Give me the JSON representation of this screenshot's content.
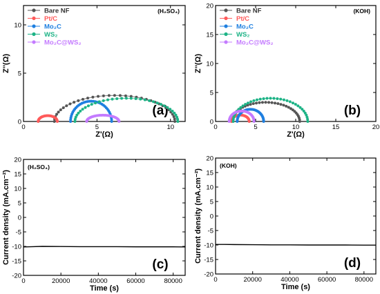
{
  "chart_data": [
    {
      "type": "scatter",
      "panel_label": "(a)",
      "electrolyte_label": "(H₂SO₄)",
      "xlabel": "Z'(Ω)",
      "ylabel": "Z''(Ω)",
      "xlim": [
        0,
        11
      ],
      "ylim": [
        0,
        12
      ],
      "xticks": [
        0,
        5,
        10
      ],
      "yticks": [
        0,
        5,
        10
      ],
      "legend_position": "top-left",
      "series": [
        {
          "name": "Bare NF",
          "color": "#555555",
          "arc": {
            "start": 2.1,
            "end": 10.3,
            "peak": 2.7
          }
        },
        {
          "name": "Pt/C",
          "color": "#ff5a5a",
          "arc": {
            "start": 1.0,
            "end": 2.3,
            "peak": 0.6
          }
        },
        {
          "name": "Mo₂C",
          "color": "#1e7fe0",
          "arc": {
            "start": 3.2,
            "end": 6.0,
            "peak": 2.1
          }
        },
        {
          "name": "WS₂",
          "color": "#1db386",
          "arc": {
            "start": 3.5,
            "end": 10.5,
            "peak": 2.4
          }
        },
        {
          "name": "Mo₂C@WS₂",
          "color": "#c47bff",
          "arc": {
            "start": 4.3,
            "end": 6.5,
            "peak": 0.65
          }
        }
      ]
    },
    {
      "type": "scatter",
      "panel_label": "(b)",
      "electrolyte_label": "(KOH)",
      "xlabel": "Z'(Ω)",
      "ylabel": "Z''(Ω)",
      "xlim": [
        0,
        20
      ],
      "ylim": [
        0,
        20
      ],
      "xticks": [
        0,
        5,
        10,
        15,
        20
      ],
      "yticks": [
        0,
        5,
        10,
        15,
        20
      ],
      "legend_position": "top-left",
      "series": [
        {
          "name": "Bare NF",
          "color": "#555555",
          "arc": {
            "start": 2.0,
            "end": 10.5,
            "peak": 3.3
          }
        },
        {
          "name": "Pt/C",
          "color": "#ff5a5a",
          "arc": {
            "start": 2.0,
            "end": 4.2,
            "peak": 1.1
          }
        },
        {
          "name": "Mo₂C",
          "color": "#1e7fe0",
          "arc": {
            "start": 2.7,
            "end": 6.0,
            "peak": 2.1
          }
        },
        {
          "name": "WS₂",
          "color": "#1db386",
          "arc": {
            "start": 2.2,
            "end": 11.5,
            "peak": 4.0
          }
        },
        {
          "name": "Mo₂C@WS₂",
          "color": "#c47bff",
          "arc": {
            "start": 1.7,
            "end": 4.8,
            "peak": 1.8
          }
        }
      ]
    },
    {
      "type": "line",
      "panel_label": "(c)",
      "electrolyte_label": "(H₂SO₄)",
      "xlabel": "Time (s)",
      "ylabel": "Current density (mA.cm⁻²)",
      "xlim": [
        0,
        86400
      ],
      "ylim": [
        -20,
        20
      ],
      "xticks": [
        0,
        20000,
        40000,
        60000,
        80000
      ],
      "yticks": [
        -20,
        -15,
        -10,
        -5,
        0,
        5,
        10,
        15,
        20
      ],
      "series": [
        {
          "name": "",
          "color": "#000000",
          "x": [
            0,
            5000,
            10000,
            20000,
            30000,
            40000,
            50000,
            60000,
            70000,
            80000,
            86400
          ],
          "y": [
            -10.2,
            -10.1,
            -10.0,
            -10.05,
            -10.1,
            -10.1,
            -10.1,
            -10.15,
            -10.15,
            -10.15,
            -10.2
          ]
        }
      ]
    },
    {
      "type": "line",
      "panel_label": "(d)",
      "electrolyte_label": "(KOH)",
      "xlabel": "Time (s)",
      "ylabel": "Current density (mA.cm⁻²)",
      "xlim": [
        0,
        86400
      ],
      "ylim": [
        -20,
        20
      ],
      "xticks": [
        0,
        20000,
        40000,
        60000,
        80000
      ],
      "yticks": [
        -20,
        -15,
        -10,
        -5,
        0,
        5,
        10,
        15,
        20
      ],
      "series": [
        {
          "name": "",
          "color": "#000000",
          "x": [
            0,
            5000,
            10000,
            20000,
            30000,
            40000,
            50000,
            60000,
            70000,
            80000,
            86400
          ],
          "y": [
            -9.8,
            -9.8,
            -9.85,
            -9.9,
            -9.95,
            -9.95,
            -10.0,
            -10.0,
            -10.0,
            -10.05,
            -10.05
          ]
        }
      ]
    }
  ]
}
